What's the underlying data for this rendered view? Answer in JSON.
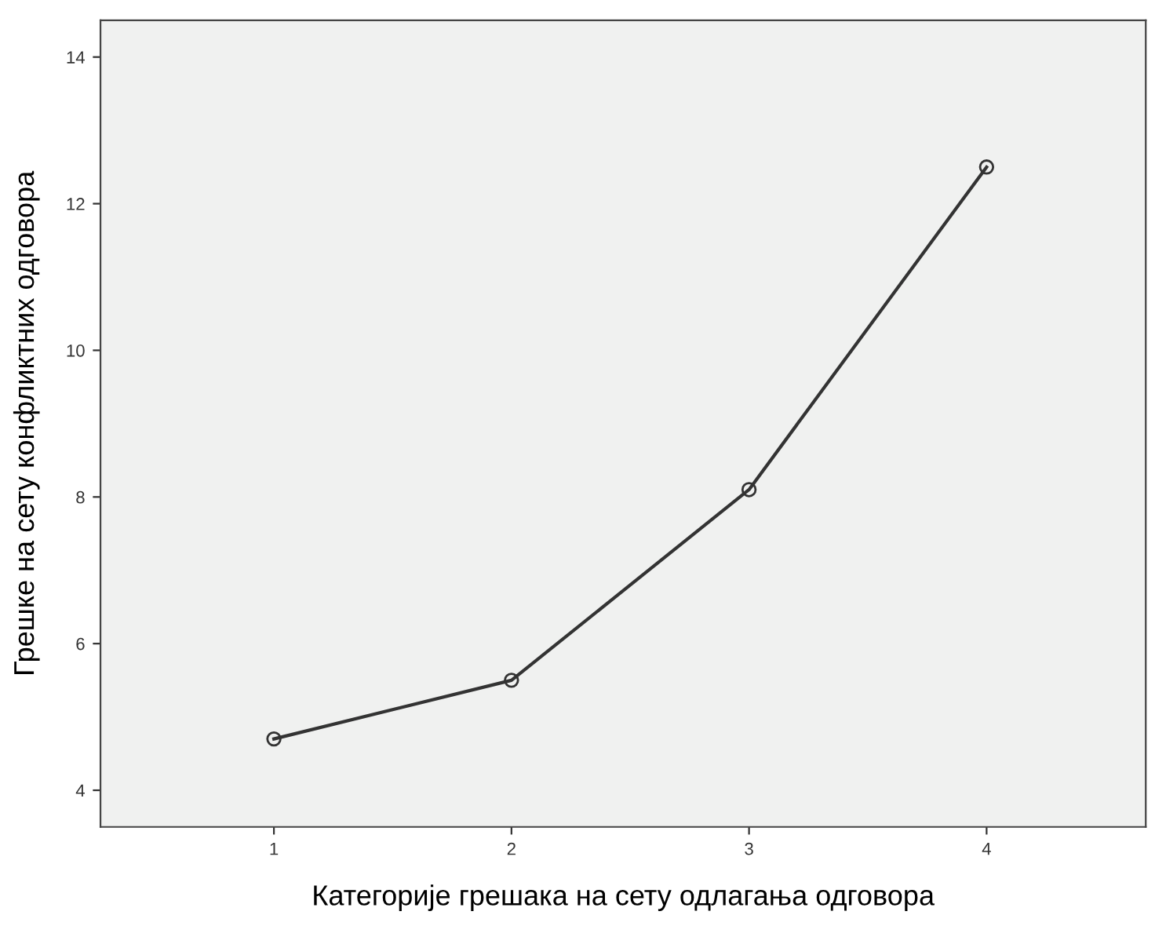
{
  "chart_data": {
    "type": "line",
    "xlabel": "Категорије грешака на сету одлагања одговора",
    "ylabel": "Грешке на сету конфликтних одговора",
    "x": [
      1,
      2,
      3,
      4
    ],
    "series": [
      {
        "color": "#333333",
        "values": [
          4.7,
          5.5,
          8.1,
          12.5
        ]
      }
    ],
    "xlim": [
      0.27,
      4.67
    ],
    "xticks": [
      1,
      2,
      3,
      4
    ],
    "ylim": [
      3.5,
      14.5
    ],
    "yticks": [
      4,
      6,
      8,
      10,
      12,
      14
    ],
    "marker": "circle",
    "line_style": "solid",
    "grid": false,
    "legend": false
  }
}
